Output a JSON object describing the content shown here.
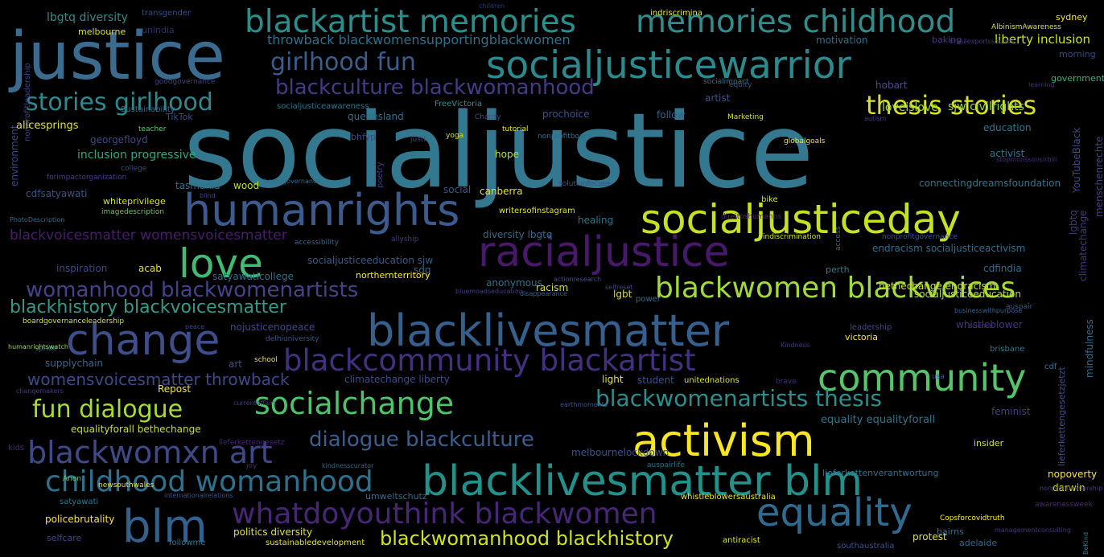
{
  "words": [
    {
      "text": "socialjustice",
      "color": "#34788f"
    },
    {
      "text": "justice",
      "color": "#3b6c90"
    },
    {
      "text": "socialjusticewarrior",
      "color": "#2b8a8e"
    },
    {
      "text": "blackartist memories",
      "color": "#2a8f8c"
    },
    {
      "text": "memories childhood",
      "color": "#2f8d8c"
    },
    {
      "text": "girlhood fun",
      "color": "#3a5d8e"
    },
    {
      "text": "blackculture blackwomanhood",
      "color": "#433b87"
    },
    {
      "text": "stories girlhood",
      "color": "#2c8a8e"
    },
    {
      "text": "thesis stories",
      "color": "#d8e21f"
    },
    {
      "text": "humanrights",
      "color": "#3b5a8d"
    },
    {
      "text": "socialjusticeday",
      "color": "#c7e020"
    },
    {
      "text": "love",
      "color": "#3ebc74"
    },
    {
      "text": "racialjustice",
      "color": "#48196b"
    },
    {
      "text": "womanhood blackwomenartists",
      "color": "#45428a"
    },
    {
      "text": "blackwomen blackvoices",
      "color": "#a2da37"
    },
    {
      "text": "blackhistory blackvoicesmatter",
      "color": "#2f9b88"
    },
    {
      "text": "change",
      "color": "#3d4e8a"
    },
    {
      "text": "blacklivesmatter",
      "color": "#355f8d"
    },
    {
      "text": "blackcommunity blackartist",
      "color": "#44307e"
    },
    {
      "text": "community",
      "color": "#54c568"
    },
    {
      "text": "womensvoicesmatter throwback",
      "color": "#3f4889"
    },
    {
      "text": "socialchange",
      "color": "#4ec36b"
    },
    {
      "text": "fun dialogue",
      "color": "#a8db34"
    },
    {
      "text": "blackwomenartists thesis",
      "color": "#2a8f8c"
    },
    {
      "text": "activism",
      "color": "#f8e621"
    },
    {
      "text": "dialogue blackculture",
      "color": "#3b5f8e"
    },
    {
      "text": "blackwomxn art",
      "color": "#3f4989"
    },
    {
      "text": "childhood womanhood",
      "color": "#2d718e"
    },
    {
      "text": "blacklivesmatter blm",
      "color": "#21918c"
    },
    {
      "text": "whatdoyouthink blackwomen",
      "color": "#482677"
    },
    {
      "text": "equality",
      "color": "#2f6b8e"
    },
    {
      "text": "blm",
      "color": "#34608d"
    },
    {
      "text": "blackwomanhood blackhistory",
      "color": "#d2e21b"
    },
    {
      "text": "lbgtq diversity",
      "color": "#2f8c8c"
    },
    {
      "text": "transgender",
      "color": "#2a4f8c"
    },
    {
      "text": "melbourne",
      "color": "#e2e418"
    },
    {
      "text": "unindia",
      "color": "#2c2f6d"
    },
    {
      "text": "children",
      "color": "#253b74"
    },
    {
      "text": "indriscrimina",
      "color": "#efe51c"
    },
    {
      "text": "sydney",
      "color": "#f0e521"
    },
    {
      "text": "AlbinismAwareness",
      "color": "#d8e21f"
    },
    {
      "text": "throwback blackwomensupportingblackwomen",
      "color": "#2c718e"
    },
    {
      "text": "liberty inclusion",
      "color": "#cde11d"
    },
    {
      "text": "motivation",
      "color": "#2c728e"
    },
    {
      "text": "baking",
      "color": "#443983"
    },
    {
      "text": "brasilexportssounds",
      "color": "#46307e"
    },
    {
      "text": "morning",
      "color": "#2b4c8c"
    },
    {
      "text": "government",
      "color": "#35b779"
    },
    {
      "text": "goodgovernance",
      "color": "#423f85"
    },
    {
      "text": "socialimpact",
      "color": "#2e6e8e"
    },
    {
      "text": "equity",
      "color": "#3e4a89"
    },
    {
      "text": "hobart",
      "color": "#4a4a8c"
    },
    {
      "text": "artist",
      "color": "#3a538b"
    },
    {
      "text": "loveislove",
      "color": "#9fda3a"
    },
    {
      "text": "sjw civilrights",
      "color": "#8bd646"
    },
    {
      "text": "learning",
      "color": "#472c7a"
    },
    {
      "text": "environment",
      "color": "#3f4889"
    },
    {
      "text": "Sustainability",
      "color": "#30698e"
    },
    {
      "text": "nonprofitleadership",
      "color": "#40428a"
    },
    {
      "text": "alicesprings",
      "color": "#e2e418"
    },
    {
      "text": "socialjusticeawareness",
      "color": "#2b768e"
    },
    {
      "text": "FreeVictoria",
      "color": "#2a908c"
    },
    {
      "text": "Charity",
      "color": "#3d4d8a"
    },
    {
      "text": "follow",
      "color": "#34608d"
    },
    {
      "text": "Marketing",
      "color": "#d5e21a"
    },
    {
      "text": "autism",
      "color": "#433e85"
    },
    {
      "text": "education",
      "color": "#2a788e"
    },
    {
      "text": "teacher",
      "color": "#5dc863"
    },
    {
      "text": "TikTok",
      "color": "#3d4d8a"
    },
    {
      "text": "queensland",
      "color": "#2c718e"
    },
    {
      "text": "tutorial",
      "color": "#f1e51d"
    },
    {
      "text": "prochoice",
      "color": "#3a548c"
    },
    {
      "text": "georgefloyd",
      "color": "#3e4a89"
    },
    {
      "text": "bhfyp",
      "color": "#404688"
    },
    {
      "text": "justi",
      "color": "#433e85"
    },
    {
      "text": "yoga",
      "color": "#d5e21a"
    },
    {
      "text": "nonprofitboard",
      "color": "#2d6f8e"
    },
    {
      "text": "globalgoals",
      "color": "#e7e419"
    },
    {
      "text": "activist",
      "color": "#2a768e"
    },
    {
      "text": "YouTubeBlack",
      "color": "#3e4989"
    },
    {
      "text": "stopmorissonsirbill",
      "color": "#472d7b"
    },
    {
      "text": "inclusion progressive",
      "color": "#25ab82"
    },
    {
      "text": "hope",
      "color": "#c0df25"
    },
    {
      "text": "college",
      "color": "#404588"
    },
    {
      "text": "forimpactorganization",
      "color": "#443b84"
    },
    {
      "text": "cdfsatyawati",
      "color": "#3b528b"
    },
    {
      "text": "tasmania",
      "color": "#2e6f8e"
    },
    {
      "text": "wood",
      "color": "#bddf26"
    },
    {
      "text": "boardgovernance",
      "color": "#2f6c8e"
    },
    {
      "text": "poetry",
      "color": "#433d84"
    },
    {
      "text": "social",
      "color": "#38588c"
    },
    {
      "text": "canberra",
      "color": "#e5e419"
    },
    {
      "text": "solutionfocuse",
      "color": "#3b528b"
    },
    {
      "text": "connectingdreamsfoundation",
      "color": "#2a768e"
    },
    {
      "text": "menschenrechte",
      "color": "#404588"
    },
    {
      "text": "whiteprivilege",
      "color": "#d8e219"
    },
    {
      "text": "blind",
      "color": "#433e85"
    },
    {
      "text": "imagedescription",
      "color": "#5ec962"
    },
    {
      "text": "writersofinstagram",
      "color": "#e5e419"
    },
    {
      "text": "bike",
      "color": "#d8e219"
    },
    {
      "text": "PhotoDescription",
      "color": "#2e6e8e"
    },
    {
      "text": "healing",
      "color": "#2a788e"
    },
    {
      "text": "direitoshumanos",
      "color": "#482374"
    },
    {
      "text": "lgbtq",
      "color": "#453781"
    },
    {
      "text": "blackvoicesmatter womensvoicesmatter",
      "color": "#481c6e"
    },
    {
      "text": "diversity lbgtq",
      "color": "#2e6e8e"
    },
    {
      "text": "accessibility",
      "color": "#34618d"
    },
    {
      "text": "allyship",
      "color": "#453781"
    },
    {
      "text": "indiscrimination",
      "color": "#d5e21a"
    },
    {
      "text": "nonprofitgovernance",
      "color": "#3a538b"
    },
    {
      "text": "access",
      "color": "#2f6c8e"
    },
    {
      "text": "endracism socialjusticeactivism",
      "color": "#2c718e"
    },
    {
      "text": "climatechange",
      "color": "#453781"
    },
    {
      "text": "inspiration",
      "color": "#3f4889"
    },
    {
      "text": "acab",
      "color": "#e8e419"
    },
    {
      "text": "sdg",
      "color": "#2f6c8e"
    },
    {
      "text": "perth",
      "color": "#26818e"
    },
    {
      "text": "cdfindia",
      "color": "#2e6e8e"
    },
    {
      "text": "socialjusticeeducation sjw",
      "color": "#365c8d"
    },
    {
      "text": "bethechange endracism",
      "color": "#cde11d"
    },
    {
      "text": "satyawaticollege",
      "color": "#2d708e"
    },
    {
      "text": "northernterritory",
      "color": "#fde725"
    },
    {
      "text": "anonymous",
      "color": "#2d708e"
    },
    {
      "text": "actionresearch",
      "color": "#3b528b"
    },
    {
      "text": "racism",
      "color": "#d2e21b"
    },
    {
      "text": "lgbt",
      "color": "#d5e21a"
    },
    {
      "text": "bluemoadseducation",
      "color": "#433e85"
    },
    {
      "text": "disappearance",
      "color": "#32658e"
    },
    {
      "text": "power",
      "color": "#2e6e8e"
    },
    {
      "text": "selfreset",
      "color": "#3f4889"
    },
    {
      "text": "socialjusticeeducation",
      "color": "#b8de29"
    },
    {
      "text": "auspair",
      "color": "#39568c"
    },
    {
      "text": "boardgovernanceleadership",
      "color": "#d0e11c"
    },
    {
      "text": "peace",
      "color": "#3e4989"
    },
    {
      "text": "nojusticenopeace",
      "color": "#3e4989"
    },
    {
      "text": "businesswithpurpose",
      "color": "#32658e"
    },
    {
      "text": "whistleblower",
      "color": "#46327e"
    },
    {
      "text": "leadership",
      "color": "#3e4a89"
    },
    {
      "text": "pride",
      "color": "#2e6e8e"
    },
    {
      "text": "delhiuniversity",
      "color": "#3b528b"
    },
    {
      "text": "science",
      "color": "#472a7a"
    },
    {
      "text": "humanrightswatch",
      "color": "#8fd744"
    },
    {
      "text": "supplychain",
      "color": "#30698e"
    },
    {
      "text": "art",
      "color": "#3b528b"
    },
    {
      "text": "school",
      "color": "#efe51c"
    },
    {
      "text": "victoria",
      "color": "#fde725"
    },
    {
      "text": "Kindness",
      "color": "#443983"
    },
    {
      "text": "brisbane",
      "color": "#2a788e"
    },
    {
      "text": "mindfulness",
      "color": "#2e6e8e"
    },
    {
      "text": "climatechange liberty",
      "color": "#3e4c8a"
    },
    {
      "text": "light",
      "color": "#ece51b"
    },
    {
      "text": "student",
      "color": "#3b528b"
    },
    {
      "text": "unitednations",
      "color": "#e2e418"
    },
    {
      "text": "usa",
      "color": "#3b528b"
    },
    {
      "text": "brave",
      "color": "#472c7a"
    },
    {
      "text": "cdf",
      "color": "#2c728e"
    },
    {
      "text": "changemakers",
      "color": "#443a83"
    },
    {
      "text": "Repost",
      "color": "#f6e620"
    },
    {
      "text": "lieferkettengesetzjetzt",
      "color": "#3d4e8a"
    },
    {
      "text": "currentaffairs",
      "color": "#443a83"
    },
    {
      "text": "feminist",
      "color": "#433e85"
    },
    {
      "text": "earthmoments",
      "color": "#3b528b"
    },
    {
      "text": "equality equalityforall",
      "color": "#2a768e"
    },
    {
      "text": "equalityforall bethechange",
      "color": "#c8e020"
    },
    {
      "text": "lieferkettengesetz",
      "color": "#482374"
    },
    {
      "text": "joy",
      "color": "#482173"
    },
    {
      "text": "westernaustralia",
      "color": "#daе319"
    },
    {
      "text": "kids",
      "color": "#482677"
    },
    {
      "text": "kindnesscurator",
      "color": "#2e6e8e"
    },
    {
      "text": "insider",
      "color": "#d5e21a"
    },
    {
      "text": "lieferkettenverantwortung",
      "color": "#2e6e8e"
    },
    {
      "text": "melbournelockdown",
      "color": "#3b528b"
    },
    {
      "text": "Anon",
      "color": "#5ec962"
    },
    {
      "text": "internationalrelations",
      "color": "#3b528b"
    },
    {
      "text": "auspairlife",
      "color": "#2e6e8e"
    },
    {
      "text": "nopoverty",
      "color": "#fde725"
    },
    {
      "text": "darwin",
      "color": "#e5e419"
    },
    {
      "text": "satyawati",
      "color": "#2a788e"
    },
    {
      "text": "newsouthwales",
      "color": "#e2e418"
    },
    {
      "text": "umweltschutz",
      "color": "#2e6e8e"
    },
    {
      "text": "whistleblowersaustralia",
      "color": "#e8e419"
    },
    {
      "text": "nonprofitleadership",
      "color": "#433e85"
    },
    {
      "text": "awarenessweek",
      "color": "#482677"
    },
    {
      "text": "policebrutality",
      "color": "#fde725"
    },
    {
      "text": "Copsforcovidtruth",
      "color": "#fde725"
    },
    {
      "text": "bairns",
      "color": "#2e6e8e"
    },
    {
      "text": "politics diversity",
      "color": "#e2e418"
    },
    {
      "text": "protest",
      "color": "#e2e418"
    },
    {
      "text": "selfcare",
      "color": "#3e4a89"
    },
    {
      "text": "followme",
      "color": "#2a788e"
    },
    {
      "text": "sustainabledevelopment",
      "color": "#e5e419"
    },
    {
      "text": "antiracist",
      "color": "#e2e418"
    },
    {
      "text": "adelaide",
      "color": "#2e6e8e"
    },
    {
      "text": "southaustralia",
      "color": "#3b528b"
    },
    {
      "text": "managementconsulting",
      "color": "#46337f"
    },
    {
      "text": "BeKind",
      "color": "#2a788e"
    }
  ]
}
